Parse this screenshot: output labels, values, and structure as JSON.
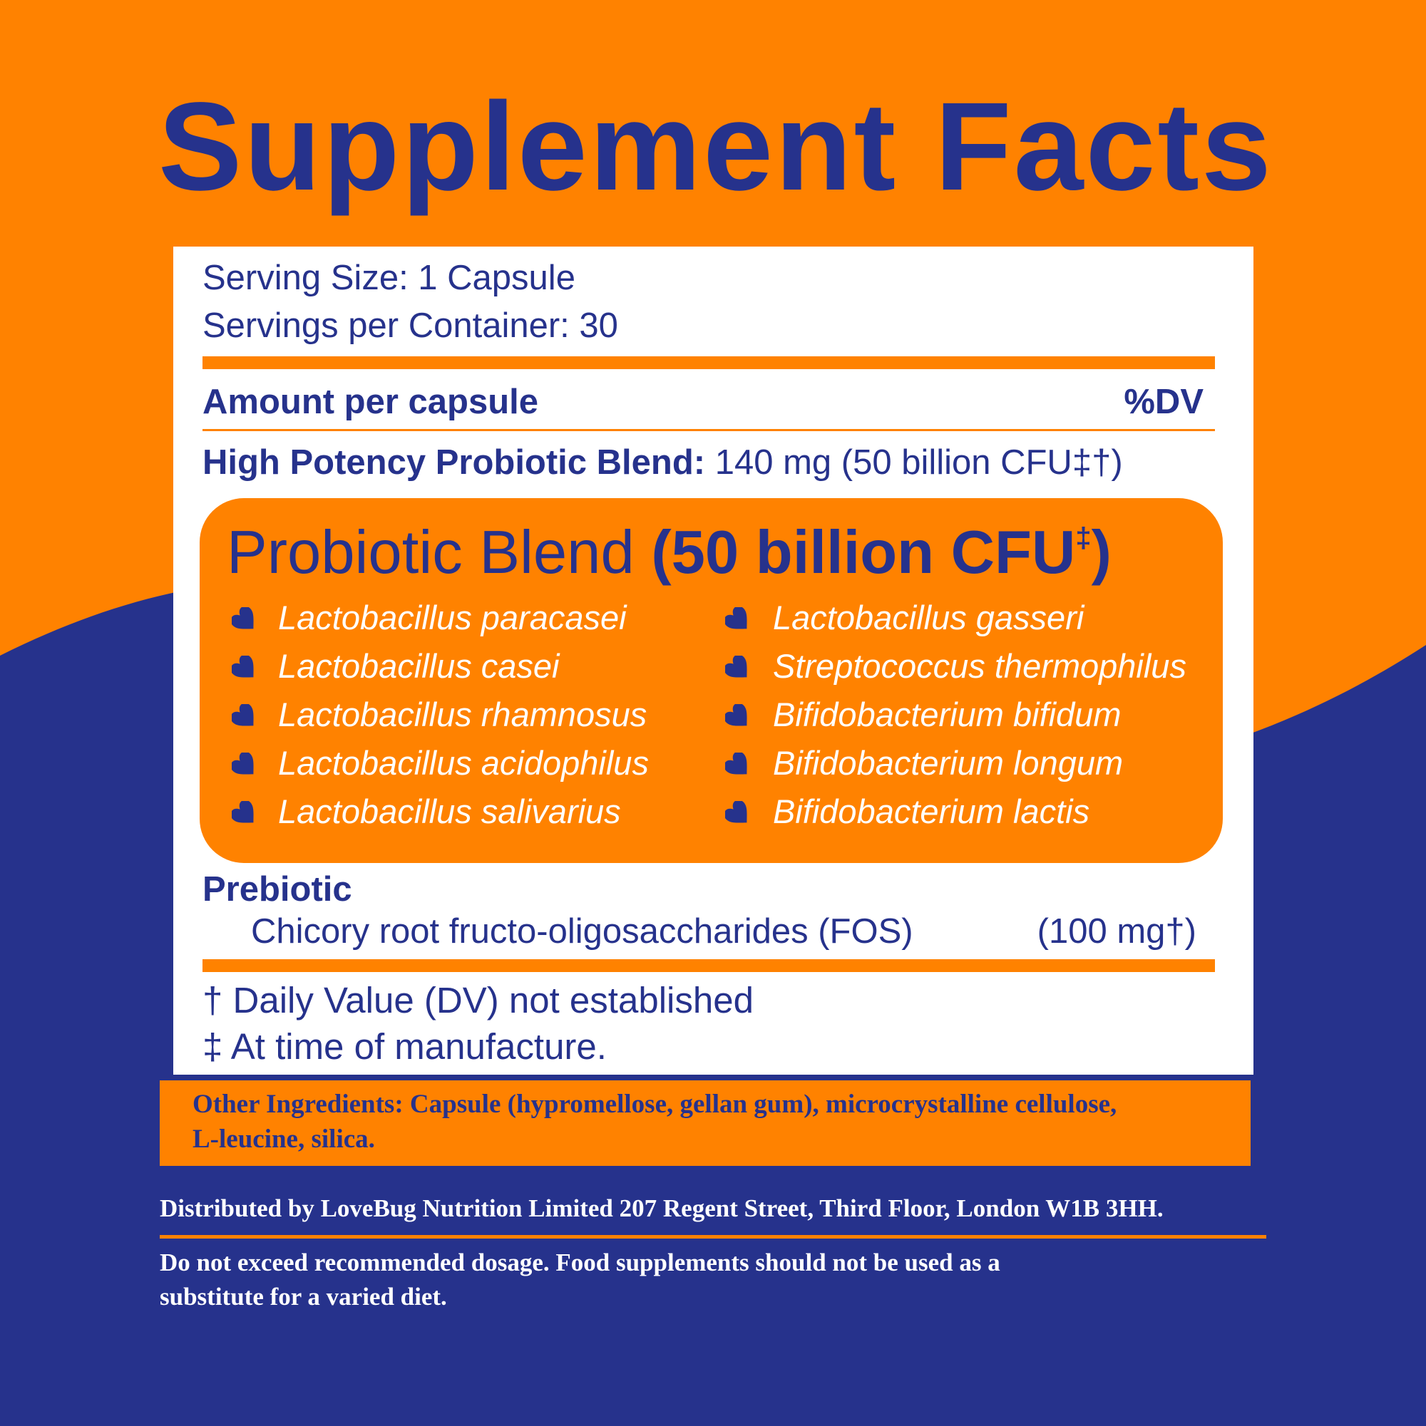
{
  "title": "Supplement Facts",
  "serving": {
    "size": "Serving Size: 1 Capsule",
    "per_container": "Servings per Container: 30"
  },
  "table_header": {
    "amount": "Amount per capsule",
    "dv": "%DV"
  },
  "main_blend": {
    "label": "High Potency Probiotic Blend:",
    "value": "140 mg (50 billion CFU‡†)"
  },
  "probiotic_blend": {
    "title_regular": "Probiotic Blend",
    "title_bold": "(50 billion CFU",
    "title_mark": "‡",
    "title_close": ")",
    "left": [
      "Lactobacillus paracasei",
      "Lactobacillus casei",
      "Lactobacillus rhamnosus",
      "Lactobacillus acidophilus",
      "Lactobacillus salivarius"
    ],
    "right": [
      "Lactobacillus gasseri",
      "Streptococcus thermophilus",
      "Bifidobacterium bifidum",
      "Bifidobacterium longum",
      "Bifidobacterium lactis"
    ]
  },
  "prebiotic": {
    "heading": "Prebiotic",
    "ingredient": "Chicory root fructo-oligosaccharides (FOS)",
    "amount": "(100 mg†)"
  },
  "footnotes": [
    "† Daily Value (DV) not established",
    "‡ At time of manufacture."
  ],
  "other_ingredients": {
    "line1": "Other Ingredients: Capsule (hypromellose, gellan gum), microcrystalline cellulose,",
    "line2": "L-leucine, silica."
  },
  "distributed": "Distributed by LoveBug Nutrition Limited 207 Regent Street, Third Floor, London W1B 3HH.",
  "warning": {
    "line1": "Do not exceed recommended dosage. Food supplements should not be used as a",
    "line2": "substitute for a varied diet."
  },
  "colors": {
    "orange": "#ff8200",
    "navy": "#26328c",
    "white": "#ffffff"
  },
  "icons": {
    "bullet": "heart-icon"
  }
}
